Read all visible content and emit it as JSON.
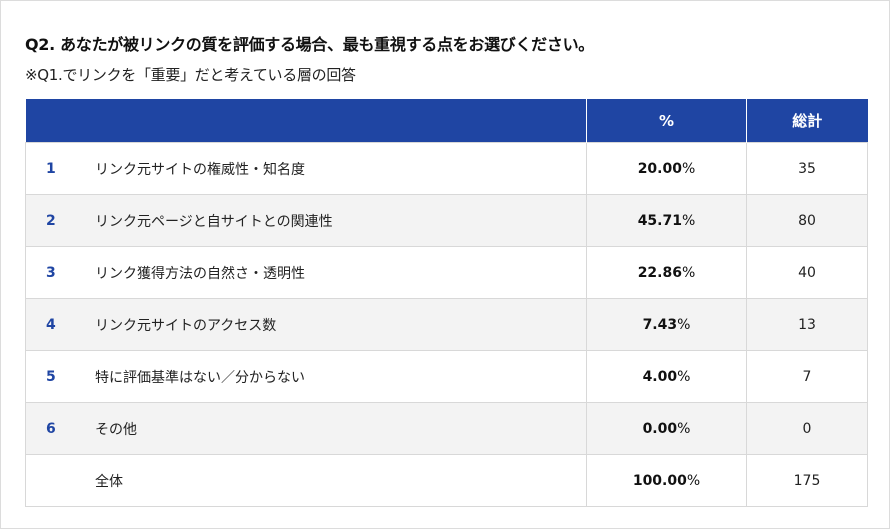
{
  "title": "Q2. あなたが被リンクの質を評価する場合、最も重視する点をお選びください。",
  "subtitle": "※Q1.でリンクを「重要」だと考えている層の回答",
  "table": {
    "headers": [
      "",
      "%",
      "総計"
    ],
    "rows": [
      {
        "num": "1",
        "label": "リンク元サイトの権威性・知名度",
        "pct": "20.00",
        "unit": "%",
        "count": "35"
      },
      {
        "num": "2",
        "label": "リンク元ページと自サイトとの関連性",
        "pct": "45.71",
        "unit": "%",
        "count": "80"
      },
      {
        "num": "3",
        "label": "リンク獲得方法の自然さ・透明性",
        "pct": "22.86",
        "unit": "%",
        "count": "40"
      },
      {
        "num": "4",
        "label": "リンク元サイトのアクセス数",
        "pct": "7.43",
        "unit": "%",
        "count": "13"
      },
      {
        "num": "5",
        "label": "特に評価基準はない／分からない",
        "pct": "4.00",
        "unit": "%",
        "count": "7"
      },
      {
        "num": "6",
        "label": "その他",
        "pct": "0.00",
        "unit": "%",
        "count": "0"
      },
      {
        "num": "",
        "label": "全体",
        "pct": "100.00",
        "unit": "%",
        "count": "175"
      }
    ]
  },
  "colors": {
    "header_bg": "#1f45a3",
    "number": "#1f45a3",
    "alt_row": "#f3f3f3"
  }
}
